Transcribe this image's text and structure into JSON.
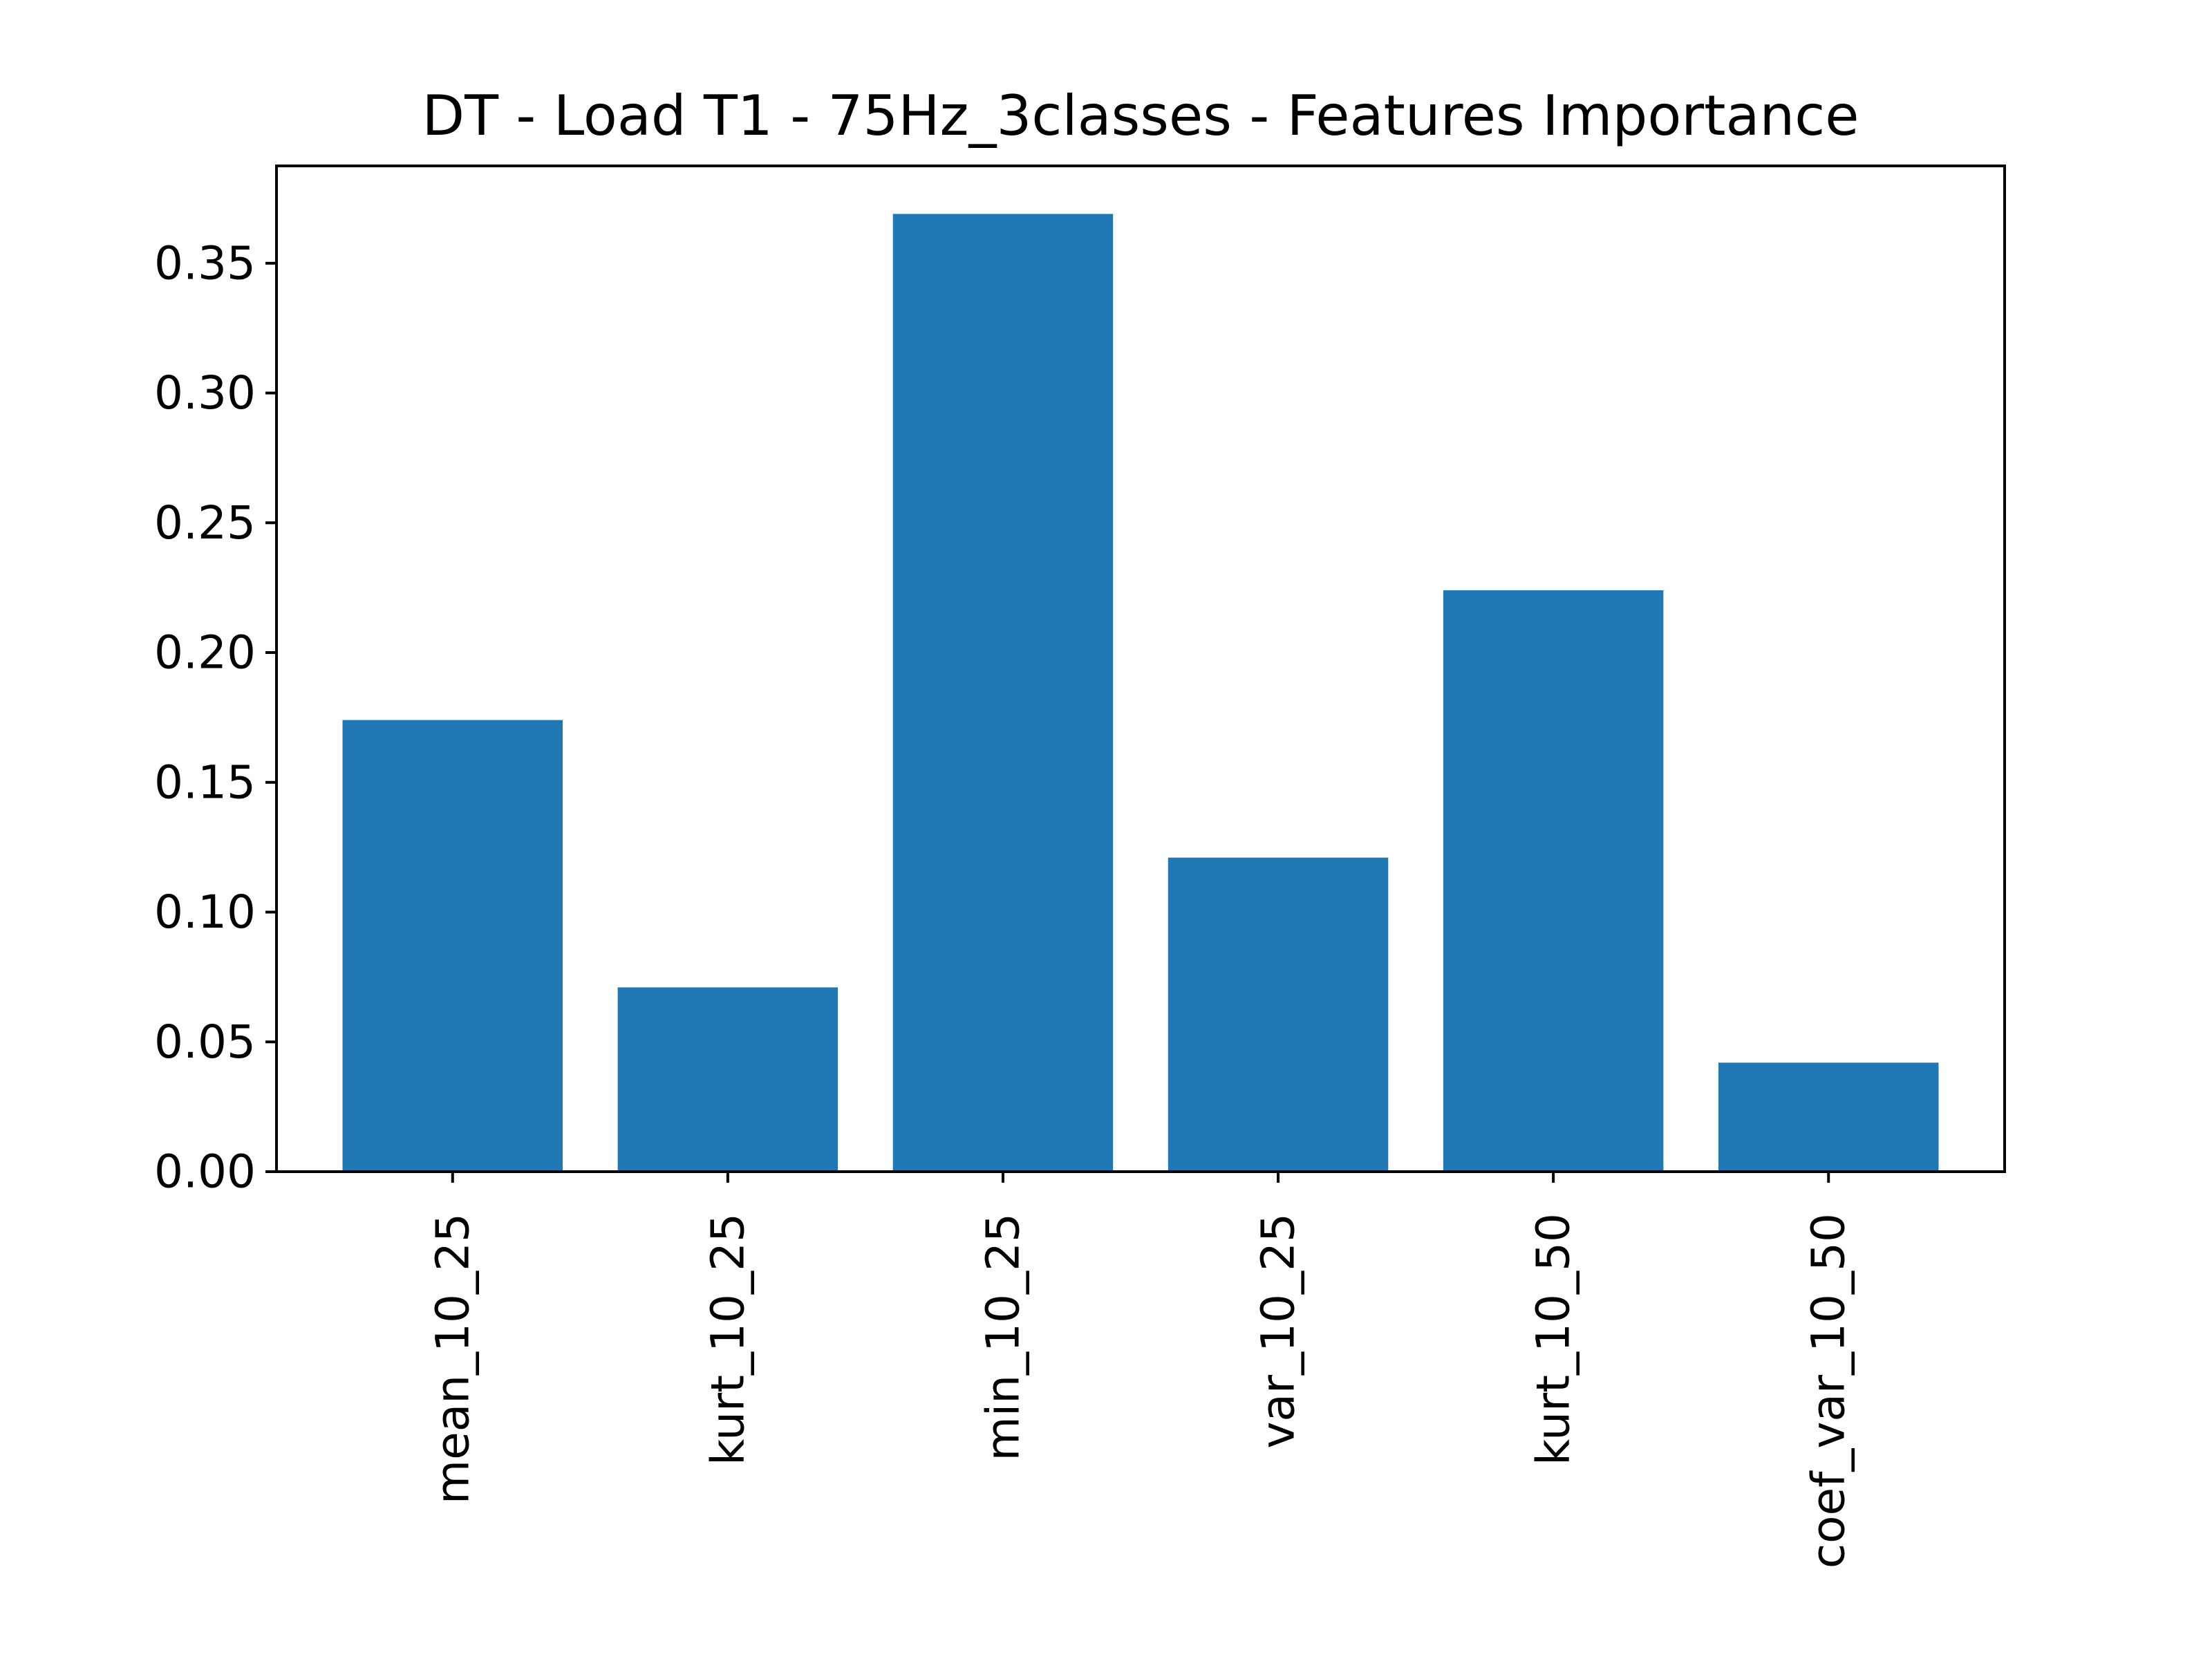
{
  "chart_data": {
    "type": "bar",
    "title": "DT - Load T1 - 75Hz_3classes - Features Importance",
    "xlabel": "",
    "ylabel": "",
    "categories": [
      "mean_10_25",
      "kurt_10_25",
      "min_10_25",
      "var_10_25",
      "kurt_10_50",
      "coef_var_10_50"
    ],
    "values": [
      0.174,
      0.071,
      0.369,
      0.121,
      0.224,
      0.042
    ],
    "ylim": [
      0,
      0.3875
    ],
    "yticks": [
      0.0,
      0.05,
      0.1,
      0.15,
      0.2,
      0.25,
      0.3,
      0.35
    ],
    "ytick_labels": [
      "0.00",
      "0.05",
      "0.10",
      "0.15",
      "0.20",
      "0.25",
      "0.30",
      "0.35"
    ],
    "bar_color": "#1f77b4",
    "grid": false,
    "legend": "none"
  }
}
